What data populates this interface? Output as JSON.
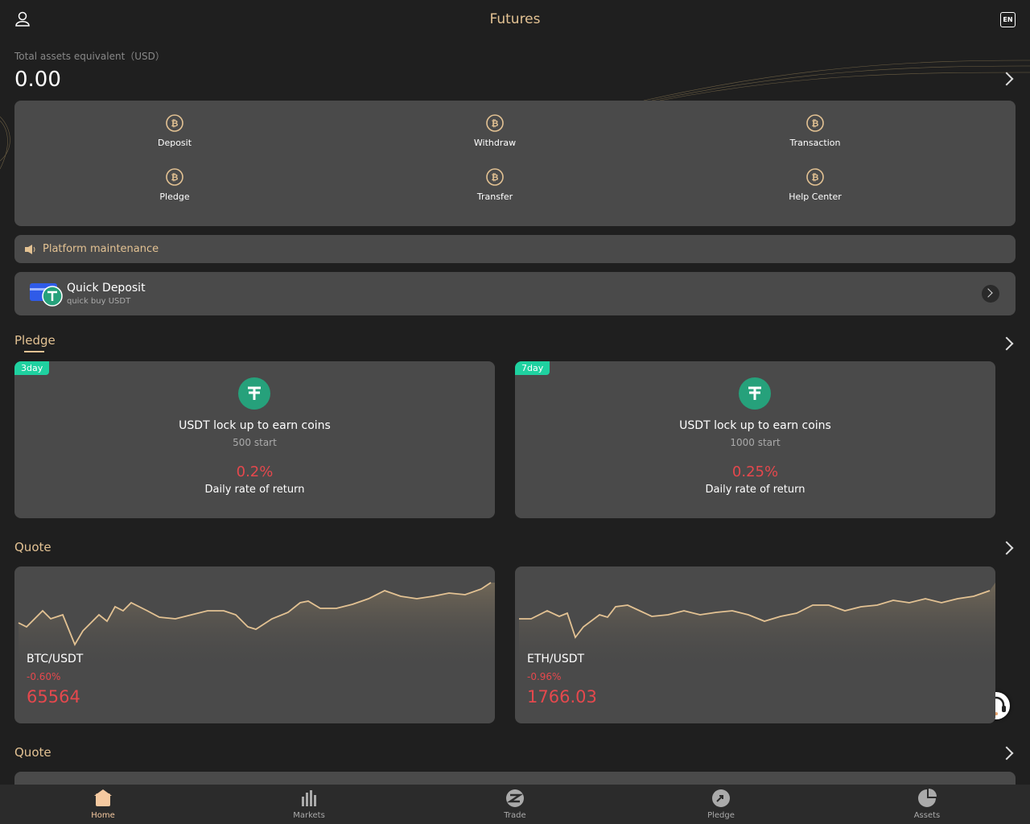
{
  "header": {
    "title": "Futures"
  },
  "assets": {
    "label": "Total assets equivalent（USD）",
    "value": "0.00"
  },
  "actions": [
    "Deposit",
    "Withdraw",
    "Transaction",
    "Pledge",
    "Transfer",
    "Help Center"
  ],
  "notice": "Platform maintenance",
  "quick_deposit": {
    "title": "Quick Deposit",
    "subtitle": "quick buy USDT"
  },
  "pledge": {
    "title": "Pledge",
    "cards": [
      {
        "tag": "3day",
        "title": "USDT lock up to earn coins",
        "minimum": "500 start",
        "rate": "0.2%",
        "rate_label": "Daily rate of return"
      },
      {
        "tag": "7day",
        "title": "USDT lock up to earn coins",
        "minimum": "1000 start",
        "rate": "0.25%",
        "rate_label": "Daily rate of return"
      }
    ]
  },
  "quote": {
    "title": "Quote",
    "items": [
      {
        "pair": "BTC/USDT",
        "change": "-0.60%",
        "price": "65564"
      },
      {
        "pair": "ETH/USDT",
        "change": "-0.96%",
        "price": "1766.03"
      }
    ]
  },
  "quote2": {
    "title": "Quote"
  },
  "nav": [
    "Home",
    "Markets",
    "Trade",
    "Pledge",
    "Assets"
  ]
}
